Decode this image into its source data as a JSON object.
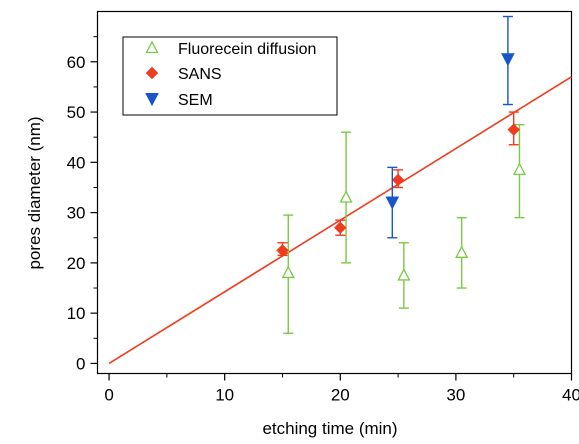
{
  "chart_data": {
    "type": "scatter",
    "xlabel": "etching time (min)",
    "ylabel": "pores diameter (nm)",
    "xlim": [
      -1,
      40
    ],
    "ylim": [
      -2,
      70
    ],
    "x_ticks": [
      0,
      10,
      20,
      30,
      40
    ],
    "y_ticks": [
      0,
      10,
      20,
      30,
      40,
      50,
      60
    ],
    "grid": false,
    "legend_position": "top-left",
    "series": [
      {
        "name": "Fluorecein diffusion",
        "marker": "open-triangle-up",
        "color": "#7ac943",
        "points": [
          {
            "x": 15.5,
            "y": 18,
            "err_low": 6,
            "err_high": 29.5
          },
          {
            "x": 20.5,
            "y": 33,
            "err_low": 20,
            "err_high": 46
          },
          {
            "x": 25.5,
            "y": 17.5,
            "err_low": 11,
            "err_high": 24
          },
          {
            "x": 30.5,
            "y": 22,
            "err_low": 15,
            "err_high": 29
          },
          {
            "x": 35.5,
            "y": 38.5,
            "err_low": 29,
            "err_high": 47.5
          }
        ]
      },
      {
        "name": "SANS",
        "marker": "filled-diamond",
        "color": "#f03c1e",
        "points": [
          {
            "x": 15,
            "y": 22.5,
            "err_low": 21.5,
            "err_high": 24
          },
          {
            "x": 20,
            "y": 27,
            "err_low": 25.5,
            "err_high": 28.5
          },
          {
            "x": 25,
            "y": 36.5,
            "err_low": 35,
            "err_high": 38.5
          },
          {
            "x": 35,
            "y": 46.5,
            "err_low": 43.5,
            "err_high": 50
          }
        ]
      },
      {
        "name": "SEM",
        "marker": "filled-triangle-down",
        "color": "#1a55c8",
        "points": [
          {
            "x": 24.5,
            "y": 32,
            "err_low": 25,
            "err_high": 39
          },
          {
            "x": 34.5,
            "y": 60.5,
            "err_low": 51.5,
            "err_high": 69
          }
        ]
      }
    ],
    "fit_line": {
      "color": "#f03c1e",
      "x": [
        0,
        40
      ],
      "y": [
        0,
        57
      ]
    }
  }
}
